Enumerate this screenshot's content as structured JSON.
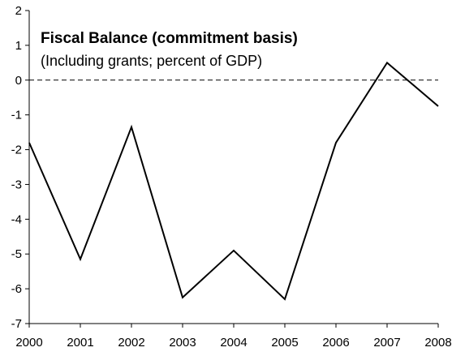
{
  "chart_data": {
    "type": "line",
    "title": "Fiscal Balance (commitment basis)",
    "subtitle": "(Including grants; percent of GDP)",
    "xlabel": "",
    "ylabel": "",
    "x": [
      2000,
      2001,
      2002,
      2003,
      2004,
      2005,
      2006,
      2007,
      2008
    ],
    "series": [
      {
        "values": [
          -1.8,
          -5.15,
          -1.35,
          -6.25,
          -4.9,
          -6.3,
          -1.8,
          0.5,
          -0.75
        ]
      }
    ],
    "xlim": [
      2000,
      2008
    ],
    "ylim": [
      -7,
      2
    ],
    "x_ticks": [
      "2000",
      "2001",
      "2002",
      "2003",
      "2004",
      "2005",
      "2006",
      "2007",
      "2008"
    ],
    "y_ticks": [
      "2",
      "1",
      "0",
      "-1",
      "-2",
      "-3",
      "-4",
      "-5",
      "-6",
      "-7"
    ],
    "reference_line": {
      "y": 0,
      "style": "dashed"
    },
    "grid": false,
    "legend": "none",
    "colors": {
      "line": "#000000",
      "reference": "#000000"
    }
  }
}
